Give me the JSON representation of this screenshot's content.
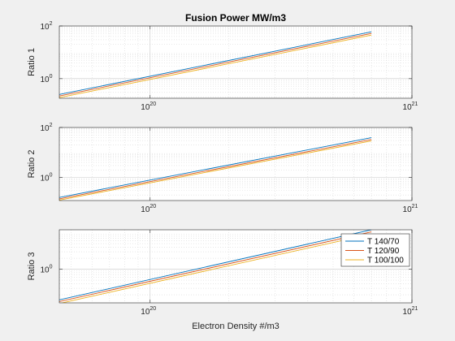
{
  "chart_data": [
    {
      "type": "line",
      "title": "Fusion Power MW/m3",
      "xlabel": "",
      "ylabel": "Ratio 1",
      "xscale": "log",
      "yscale": "log",
      "xlim": [
        4.5e+19,
        1e+21
      ],
      "ylim": [
        0.18,
        100
      ],
      "x_ticks": [
        {
          "value": 1e+20,
          "base": "10",
          "exp": "20"
        },
        {
          "value": 1e+21,
          "base": "10",
          "exp": "21"
        }
      ],
      "y_ticks": [
        {
          "value": 1,
          "base": "10",
          "exp": "0"
        },
        {
          "value": 100,
          "base": "10",
          "exp": "2"
        }
      ],
      "grid": true,
      "series": [
        {
          "name": "T 140/70",
          "color": "#0072BD",
          "x": [
            4.5e+19,
            7e+20
          ],
          "y": [
            0.25,
            60
          ]
        },
        {
          "name": "T 120/90",
          "color": "#D95319",
          "x": [
            4.5e+19,
            7e+20
          ],
          "y": [
            0.22,
            52
          ]
        },
        {
          "name": "T 100/100",
          "color": "#EDB120",
          "x": [
            4.5e+19,
            7e+20
          ],
          "y": [
            0.19,
            45
          ]
        }
      ]
    },
    {
      "type": "line",
      "title": "",
      "xlabel": "",
      "ylabel": "Ratio 2",
      "xscale": "log",
      "yscale": "log",
      "xlim": [
        4.5e+19,
        1e+21
      ],
      "ylim": [
        0.12,
        100
      ],
      "x_ticks": [
        {
          "value": 1e+20,
          "base": "10",
          "exp": "20"
        },
        {
          "value": 1e+21,
          "base": "10",
          "exp": "21"
        }
      ],
      "y_ticks": [
        {
          "value": 1,
          "base": "10",
          "exp": "0"
        },
        {
          "value": 100,
          "base": "10",
          "exp": "2"
        }
      ],
      "grid": true,
      "series": [
        {
          "name": "T 140/70",
          "color": "#0072BD",
          "x": [
            4.5e+19,
            7e+20
          ],
          "y": [
            0.16,
            39
          ]
        },
        {
          "name": "T 120/90",
          "color": "#D95319",
          "x": [
            4.5e+19,
            7e+20
          ],
          "y": [
            0.14,
            33
          ]
        },
        {
          "name": "T 100/100",
          "color": "#EDB120",
          "x": [
            4.5e+19,
            7e+20
          ],
          "y": [
            0.125,
            29
          ]
        }
      ]
    },
    {
      "type": "line",
      "title": "",
      "xlabel": "Electron Density #/m3",
      "ylabel": "Ratio 3",
      "xscale": "log",
      "yscale": "log",
      "xlim": [
        4.5e+19,
        1e+21
      ],
      "ylim": [
        0.12,
        12
      ],
      "x_ticks": [
        {
          "value": 1e+20,
          "base": "10",
          "exp": "20"
        },
        {
          "value": 1e+21,
          "base": "10",
          "exp": "21"
        }
      ],
      "y_ticks": [
        {
          "value": 1,
          "base": "10",
          "exp": "0"
        }
      ],
      "grid": true,
      "legend": {
        "location": "right",
        "entries": [
          "T 140/70",
          "T 120/90",
          "T 100/100"
        ]
      },
      "series": [
        {
          "name": "T 140/70",
          "color": "#0072BD",
          "x": [
            4.5e+19,
            7e+20
          ],
          "y": [
            0.145,
            12
          ]
        },
        {
          "name": "T 120/90",
          "color": "#D95319",
          "x": [
            4.5e+19,
            7e+20
          ],
          "y": [
            0.13,
            10.5
          ]
        },
        {
          "name": "T 100/100",
          "color": "#EDB120",
          "x": [
            4.5e+19,
            7e+20
          ],
          "y": [
            0.115,
            9.2
          ]
        }
      ]
    }
  ]
}
